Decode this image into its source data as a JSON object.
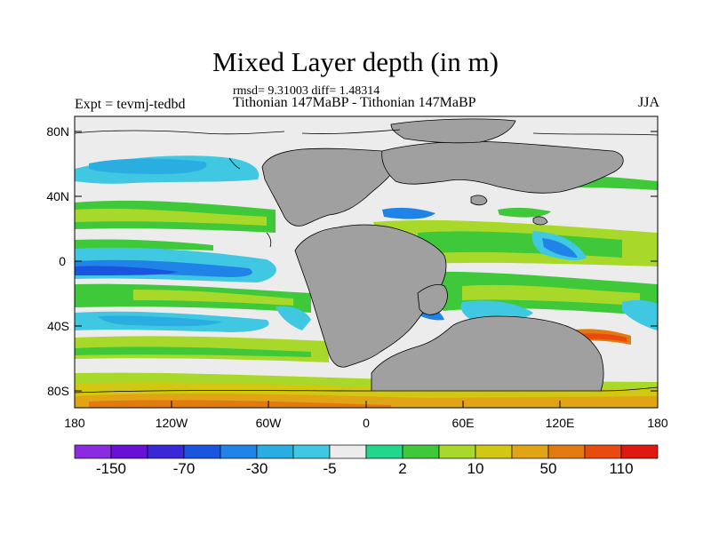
{
  "header": {
    "title": "Mixed Layer depth (in m)",
    "stats": "rmsd= 9.31003 diff= 1.48314",
    "experiments": "Tithonian 147MaBP - Tithonian 147MaBP",
    "expt_label": "Expt = tevmj-tedbd",
    "season": "JJA"
  },
  "axes": {
    "lat_labels": [
      "80N",
      "40N",
      "0",
      "40S",
      "80S"
    ],
    "lon_labels": [
      "180",
      "120W",
      "60W",
      "0",
      "60E",
      "120E",
      "180"
    ]
  },
  "colorbar": {
    "colors": [
      "#8a2be2",
      "#6a0fd6",
      "#3a28d8",
      "#1a55e0",
      "#1f83e8",
      "#2aaee2",
      "#40c8e2",
      "#ececec",
      "#22d68a",
      "#3ec83a",
      "#a8d82a",
      "#d2c814",
      "#e0a414",
      "#e27a10",
      "#e84a10",
      "#e01812"
    ],
    "labels": [
      "-150",
      "-70",
      "-30",
      "-5",
      "2",
      "10",
      "50",
      "110"
    ]
  },
  "map": {
    "land_color": "#a0a0a0",
    "neutral_color": "#ececec"
  }
}
